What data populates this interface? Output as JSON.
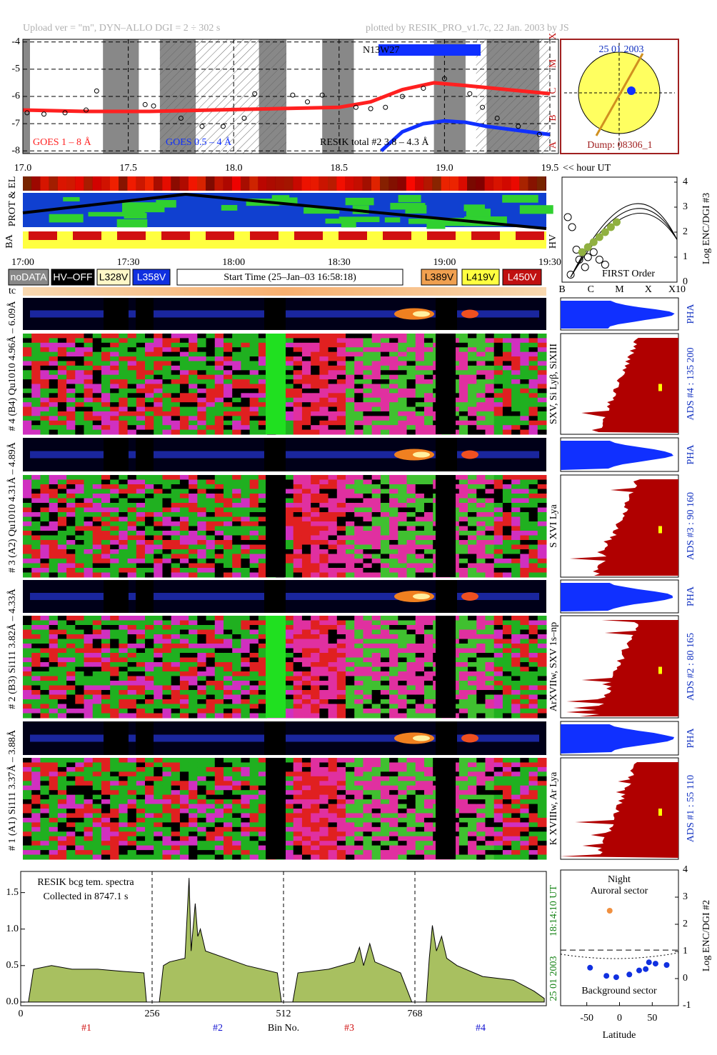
{
  "header": {
    "left": "Upload ver = \"m\", DYN–ALLO DGI =   2 ÷ 302 s",
    "right": "plotted by RESIK_PRO_v1.7c, 22 Jan. 2003 by JS"
  },
  "sun": {
    "date": "25 01 2003",
    "dump": "Dump: 08306_1"
  },
  "strips": {
    "prot": "PROT & EL",
    "ba": "BA",
    "hv": "HV",
    "time_ticks": [
      "17:00",
      "17:30",
      "18:00",
      "18:30",
      "19:00",
      "19:30"
    ]
  },
  "buttons": [
    {
      "label": "noDATA",
      "color": "#888888"
    },
    {
      "label": "HV–OFF",
      "color": "#000000"
    },
    {
      "label": "L328V",
      "color": "#fff8c8"
    },
    {
      "label": "L358V",
      "color": "#1030e0"
    },
    {
      "label": "Start Time (25–Jan–03 16:58:18)",
      "color": "#ffffff"
    },
    {
      "label": "L389V",
      "color": "#f0a050"
    },
    {
      "label": "L419V",
      "color": "#ffff40"
    },
    {
      "label": "L450V",
      "color": "#c01010"
    }
  ],
  "tc": "tc",
  "channels": [
    {
      "label": "# 4 (B4) Qu1010 4.96Å – 6.09Å",
      "lines": "SXV, Si Lyβ, SiXIII",
      "ads": "ADS #4 :   135 200",
      "pha": "PHA"
    },
    {
      "label": "# 3 (A2) Qu1010 4.31Å – 4.89Å",
      "lines": "S XVI Lya",
      "ads": "ADS #3 :   90 160",
      "pha": "PHA"
    },
    {
      "label": "# 2 (B3) Si111 3.82Å – 4.33Å",
      "lines": "ArXVIIw, SXV 1s–np",
      "ads": "ADS #2 :   80 165",
      "pha": "PHA"
    },
    {
      "label": "# 1 (A1) Si111 3.37Å – 3.88Å",
      "lines": "K XVIIIw, Ar Lya",
      "ads": "ADS #1 :   55 110",
      "pha": "PHA"
    }
  ],
  "chart_data": [
    {
      "type": "line",
      "xlim": [
        17.0,
        19.5
      ],
      "ylim": [
        -8.1,
        -3.9
      ],
      "xticks": [
        {
          "value": 17,
          "label": "17.0"
        },
        17.5,
        {
          "value": 18,
          "label": "18.0"
        },
        18.5,
        {
          "value": 19,
          "label": "19.0"
        },
        19.5
      ],
      "yticks": [
        -4,
        -5,
        -6,
        -7,
        -8
      ],
      "class_labels": [
        "X",
        "M",
        "C",
        "B",
        "A"
      ],
      "xlabel": "<< hour UT",
      "annotation": "N13W27",
      "grid": true,
      "series": [
        {
          "name": "GOES 1 – 8 Å",
          "color": "#ff2020",
          "x": [
            17.0,
            17.3,
            17.6,
            17.9,
            18.2,
            18.5,
            18.65,
            18.8,
            18.95,
            19.1,
            19.3,
            19.5
          ],
          "values": [
            -6.5,
            -6.55,
            -6.55,
            -6.5,
            -6.45,
            -6.4,
            -6.2,
            -5.75,
            -5.5,
            -5.6,
            -5.75,
            -5.9
          ]
        },
        {
          "name": "GOES 0.5 – 4 Å",
          "color": "#1030ff",
          "x": [
            18.7,
            18.8,
            18.9,
            19.0,
            19.1,
            19.2,
            19.35,
            19.5
          ],
          "values": [
            -8.0,
            -7.3,
            -7.0,
            -6.9,
            -6.95,
            -7.1,
            -7.25,
            -7.4
          ]
        },
        {
          "name": "RESIK total #2  3.8 – 4.3 Å",
          "color": "#000000",
          "x": [
            17.02,
            17.1,
            17.2,
            17.3,
            17.35,
            17.58,
            17.62,
            17.75,
            17.85,
            17.95,
            18.05,
            18.1,
            18.28,
            18.35,
            18.42,
            18.58,
            18.65,
            18.72,
            18.8,
            18.9,
            19.0,
            19.12,
            19.18,
            19.25,
            19.35,
            19.45
          ],
          "values": [
            -6.6,
            -6.65,
            -6.6,
            -6.5,
            -5.8,
            -6.3,
            -6.35,
            -6.8,
            -7.1,
            -7.1,
            -6.8,
            -5.9,
            -5.95,
            -6.2,
            -5.95,
            -6.4,
            -6.45,
            -6.4,
            -6.0,
            -5.7,
            -5.35,
            -5.9,
            -6.4,
            -6.8,
            -7.1,
            -7.4
          ]
        }
      ]
    },
    {
      "type": "scatter",
      "xlim": [
        0,
        4
      ],
      "ylim": [
        0,
        4.2
      ],
      "xticks": [
        {
          "value": 0,
          "label": "B"
        },
        {
          "value": 1,
          "label": "C"
        },
        {
          "value": 2,
          "label": "M"
        },
        {
          "value": 3,
          "label": "X"
        },
        {
          "value": 4,
          "label": "X10"
        }
      ],
      "yticks": [
        0,
        1,
        2,
        3,
        4
      ],
      "ylabel": "Log ENC/DGI #3",
      "annotation": "FIRST Order",
      "series": [
        {
          "name": null,
          "color": "#000000",
          "x": [
            0.2,
            0.35,
            0.5,
            0.6,
            0.8,
            0.9,
            1.1,
            1.3,
            1.5,
            0.3
          ],
          "values": [
            2.6,
            2.2,
            1.3,
            0.9,
            0.6,
            1.0,
            1.2,
            0.9,
            0.7,
            0.3
          ]
        },
        {
          "name": null,
          "color": "#90b040",
          "x": [
            0.7,
            0.9,
            1.1,
            1.3,
            1.5,
            1.7,
            1.9
          ],
          "values": [
            1.2,
            1.4,
            1.6,
            1.8,
            2.0,
            2.2,
            2.4
          ]
        }
      ]
    },
    {
      "type": "area",
      "xlim": [
        0,
        1024
      ],
      "ylim": [
        -0.05,
        1.79
      ],
      "xticks": [
        0,
        256,
        512,
        768
      ],
      "yticks": [
        {
          "value": 0,
          "label": "0.0"
        },
        {
          "value": 0.5,
          "label": "0.5"
        },
        {
          "value": 1,
          "label": "1.0"
        },
        {
          "value": 1.5,
          "label": "1.5"
        }
      ],
      "xlabel": "Bin No.",
      "note": [
        "RESIK bcg tem. spectra",
        "Collected in  8747.1 s"
      ],
      "time": "18:14:10 UT",
      "date": "25 01 2003",
      "color": "#a8c060",
      "channel_labels": [
        {
          "label": "#1",
          "color": "#d01010"
        },
        {
          "label": "#2",
          "color": "#1010d0"
        },
        {
          "label": "#3",
          "color": "#d01010"
        },
        {
          "label": "#4",
          "color": "#1010d0"
        }
      ],
      "x": [
        0,
        15,
        25,
        60,
        100,
        150,
        200,
        240,
        245,
        270,
        278,
        290,
        320,
        328,
        332,
        340,
        345,
        350,
        360,
        400,
        440,
        500,
        508,
        530,
        540,
        600,
        650,
        660,
        668,
        680,
        690,
        740,
        762,
        790,
        796,
        802,
        810,
        820,
        830,
        850,
        900,
        960,
        1000,
        1020
      ],
      "values": [
        0,
        0,
        0.45,
        0.5,
        0.45,
        0.45,
        0.42,
        0.4,
        0,
        0,
        0.5,
        0.55,
        0.6,
        1.7,
        0.7,
        1.35,
        0.9,
        1.0,
        0.7,
        0.6,
        0.5,
        0.4,
        0,
        0,
        0.4,
        0.45,
        0.55,
        0.75,
        0.5,
        0.8,
        0.55,
        0.4,
        0,
        0,
        0.6,
        1.05,
        0.7,
        0.9,
        0.6,
        0.5,
        0.35,
        0.3,
        0.15,
        0.05
      ]
    },
    {
      "type": "scatter",
      "xlim": [
        -90,
        90
      ],
      "ylim": [
        -1,
        4
      ],
      "xticks": [
        -50,
        0,
        50
      ],
      "yticks": [
        -1,
        0,
        1,
        2,
        3,
        4
      ],
      "xlabel": "Latitude",
      "ylabel": "Log ENC/DGI #2",
      "labels": [
        "Night",
        "Auroral sector",
        "Background sector"
      ],
      "series": [
        {
          "name": null,
          "color": "#f09040",
          "x": [
            -15
          ],
          "values": [
            2.5
          ]
        },
        {
          "name": null,
          "color": "#1030e0",
          "x": [
            -45,
            -20,
            -5,
            15,
            30,
            40,
            45,
            55,
            72
          ],
          "values": [
            0.4,
            0.1,
            0.05,
            0.15,
            0.3,
            0.35,
            0.6,
            0.55,
            0.5
          ]
        }
      ]
    }
  ]
}
